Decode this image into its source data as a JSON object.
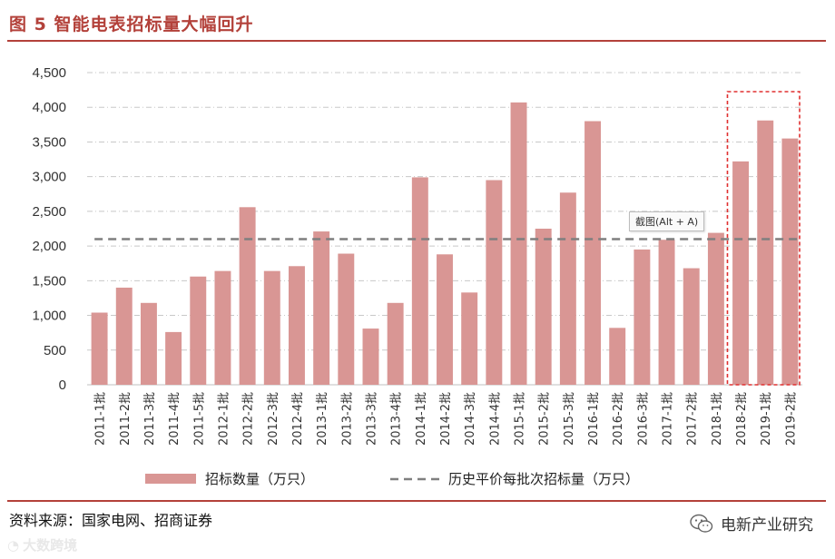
{
  "header": {
    "title": "图 5 智能电表招标量大幅回升"
  },
  "footer": {
    "source": "资料来源：国家电网、招商证券",
    "brand": "电新产业研究",
    "watermark": "大数跨境"
  },
  "tooltip": {
    "text": "截图(Alt + A)"
  },
  "colors": {
    "bar": "#d99694",
    "accent": "#b3413a",
    "avg_line": "#7f7f7f",
    "highlight_box": "#e03030"
  },
  "chart_data": {
    "type": "bar",
    "title": "图 5 智能电表招标量大幅回升",
    "categories": [
      "2011-1批",
      "2011-2批",
      "2011-3批",
      "2011-4批",
      "2011-5批",
      "2012-1批",
      "2012-2批",
      "2012-3批",
      "2012-4批",
      "2013-1批",
      "2013-2批",
      "2013-3批",
      "2013-4批",
      "2014-1批",
      "2014-2批",
      "2014-3批",
      "2014-4批",
      "2015-1批",
      "2015-2批",
      "2015-3批",
      "2016-1批",
      "2016-2批",
      "2016-3批",
      "2017-1批",
      "2017-2批",
      "2018-1批",
      "2018-2批",
      "2019-1批",
      "2019-2批"
    ],
    "series": [
      {
        "name": "招标数量（万只）",
        "type": "bar",
        "values": [
          1040,
          1400,
          1180,
          760,
          1560,
          1640,
          2560,
          1640,
          1710,
          2210,
          1890,
          810,
          1180,
          2990,
          1880,
          1330,
          2950,
          4070,
          2250,
          2770,
          3800,
          820,
          1950,
          2090,
          1680,
          2190,
          3220,
          3810,
          3550
        ]
      },
      {
        "name": "历史平价每批次招标量（万只）",
        "type": "line",
        "style": "dashed",
        "value": 2100
      }
    ],
    "ylim": [
      0,
      4500
    ],
    "yticks": [
      0,
      500,
      1000,
      1500,
      2000,
      2500,
      3000,
      3500,
      4000,
      4500
    ],
    "ytick_labels": [
      "0",
      "500",
      "1,000",
      "1,500",
      "2,000",
      "2,500",
      "3,000",
      "3,500",
      "4,000",
      "4,500"
    ],
    "highlight": {
      "from": "2018-2批",
      "to": "2019-2批"
    },
    "legend": [
      "招标数量（万只）",
      "历史平价每批次招标量（万只）"
    ],
    "legend_position": "bottom",
    "grid": true
  }
}
